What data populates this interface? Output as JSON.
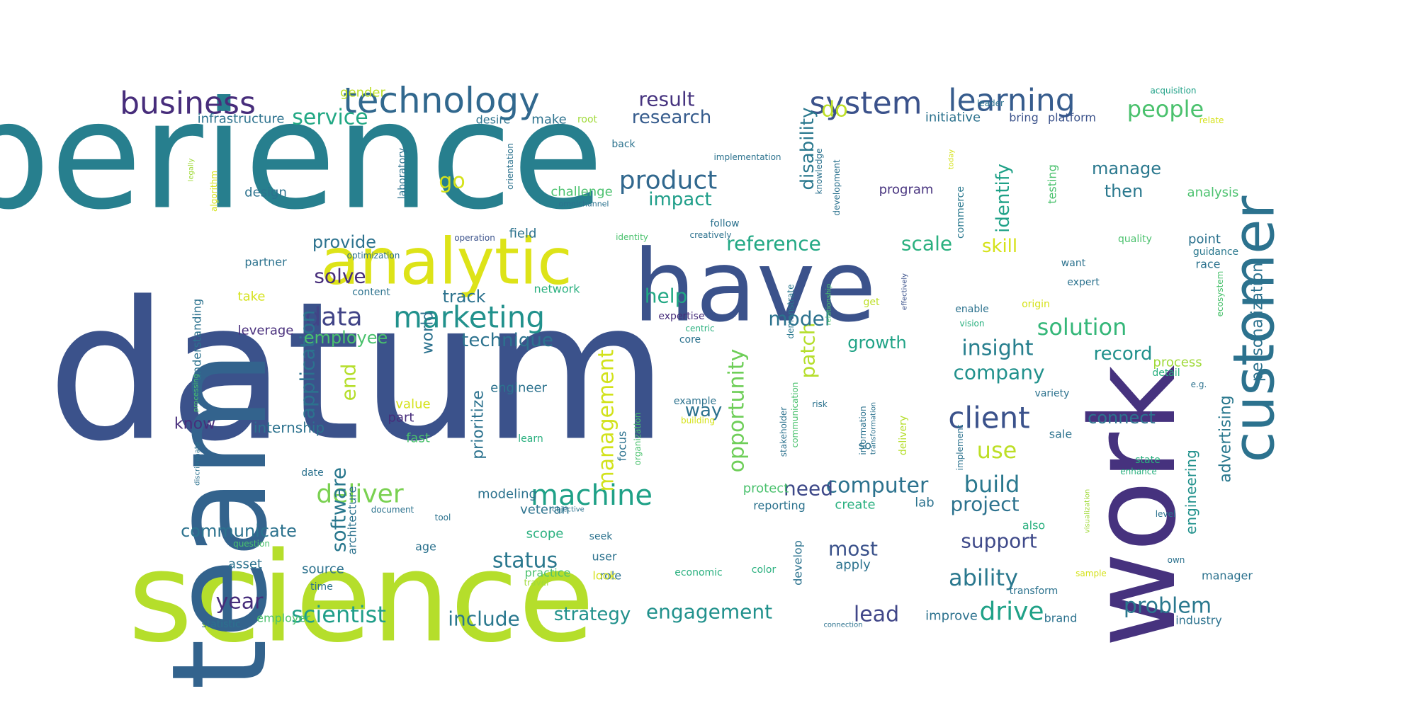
{
  "palette": {
    "dark_purple": "#46327e",
    "indigo": "#3b528b",
    "blue": "#365c8d",
    "teal": "#277f8e",
    "green": "#1fa187",
    "mint": "#4ac16d",
    "lime": "#a0da39",
    "yellow": "#dde318"
  },
  "words": [
    {
      "text": "experience",
      "color": "#277f8e"
    },
    {
      "text": "datum",
      "color": "#3b528b"
    },
    {
      "text": "science",
      "color": "#b5de2b"
    },
    {
      "text": "team",
      "color": "#33638d"
    },
    {
      "text": "work",
      "color": "#46327e"
    },
    {
      "text": "have",
      "color": "#3b528b"
    },
    {
      "text": "analytic",
      "color": "#dde318"
    },
    {
      "text": "customer",
      "color": "#2c728e"
    },
    {
      "text": "technology",
      "color": "#31688e"
    },
    {
      "text": "business",
      "color": "#472d7b"
    },
    {
      "text": "learning",
      "color": "#365c8d"
    },
    {
      "text": "system",
      "color": "#3b528b"
    },
    {
      "text": "marketing",
      "color": "#21918c"
    },
    {
      "text": "machine",
      "color": "#1fa187"
    },
    {
      "text": "client",
      "color": "#3b528b"
    },
    {
      "text": "deliver",
      "color": "#7ad151"
    },
    {
      "text": "product",
      "color": "#31688e"
    },
    {
      "text": "data",
      "color": "#414487"
    },
    {
      "text": "people",
      "color": "#4ac16d"
    },
    {
      "text": "service",
      "color": "#22a884"
    },
    {
      "text": "solution",
      "color": "#35b779"
    },
    {
      "text": "scientist",
      "color": "#1f9e89"
    },
    {
      "text": "ability",
      "color": "#2a788e"
    },
    {
      "text": "build",
      "color": "#2a788e"
    },
    {
      "text": "drive",
      "color": "#1fa187"
    },
    {
      "text": "year",
      "color": "#472d7b"
    },
    {
      "text": "opportunity",
      "color": "#6ece58"
    },
    {
      "text": "management",
      "color": "#d2e21b"
    },
    {
      "text": "software",
      "color": "#2a788e"
    },
    {
      "text": "application",
      "color": "#2c728e"
    },
    {
      "text": "problem",
      "color": "#2a788e"
    },
    {
      "text": "insight",
      "color": "#277f8e"
    },
    {
      "text": "company",
      "color": "#21918c"
    },
    {
      "text": "patch",
      "color": "#b5de2b"
    },
    {
      "text": "use",
      "color": "#bddf26"
    },
    {
      "text": "computer",
      "color": "#2c728e"
    },
    {
      "text": "engagement",
      "color": "#21918c"
    },
    {
      "text": "status",
      "color": "#2a788e"
    },
    {
      "text": "project",
      "color": "#2c728e"
    },
    {
      "text": "support",
      "color": "#3e4989"
    },
    {
      "text": "most",
      "color": "#3b528b"
    },
    {
      "text": "include",
      "color": "#2a788e"
    },
    {
      "text": "strategy",
      "color": "#21918c"
    },
    {
      "text": "lead",
      "color": "#404688"
    },
    {
      "text": "need",
      "color": "#3e4989"
    },
    {
      "text": "reference",
      "color": "#22a884"
    },
    {
      "text": "scale",
      "color": "#2ab07f"
    },
    {
      "text": "identify",
      "color": "#1fa187"
    },
    {
      "text": "result",
      "color": "#46337f"
    },
    {
      "text": "research",
      "color": "#365c8d"
    },
    {
      "text": "disability",
      "color": "#2a788e"
    },
    {
      "text": "do",
      "color": "#bddf26"
    },
    {
      "text": "impact",
      "color": "#1f9e89"
    },
    {
      "text": "go",
      "color": "#d5e21a"
    },
    {
      "text": "help",
      "color": "#22a884"
    },
    {
      "text": "model",
      "color": "#2c728e"
    },
    {
      "text": "growth",
      "color": "#20a386"
    },
    {
      "text": "skill",
      "color": "#d5e21a"
    },
    {
      "text": "manage",
      "color": "#2a788e"
    },
    {
      "text": "then",
      "color": "#2a788e"
    },
    {
      "text": "record",
      "color": "#21918c"
    },
    {
      "text": "connect",
      "color": "#2c728e"
    },
    {
      "text": "provide",
      "color": "#2c728e"
    },
    {
      "text": "solve",
      "color": "#472d7b"
    },
    {
      "text": "track",
      "color": "#2c728e"
    },
    {
      "text": "technique",
      "color": "#2c728e"
    },
    {
      "text": "world",
      "color": "#2c728e"
    },
    {
      "text": "employee",
      "color": "#4ac16d"
    },
    {
      "text": "end",
      "color": "#b5de2b"
    },
    {
      "text": "prioritize",
      "color": "#2c728e"
    },
    {
      "text": "way",
      "color": "#2c728e"
    },
    {
      "text": "know",
      "color": "#472d7b"
    },
    {
      "text": "internship",
      "color": "#2c728e"
    },
    {
      "text": "communicate",
      "color": "#2c728e"
    },
    {
      "text": "personalization",
      "color": "#2c728e"
    },
    {
      "text": "advertising",
      "color": "#2a788e"
    },
    {
      "text": "engineering",
      "color": "#21918c"
    },
    {
      "text": "infrastructure",
      "color": "#2c728e"
    },
    {
      "text": "gender",
      "color": "#bddf26"
    },
    {
      "text": "desire",
      "color": "#2c728e"
    },
    {
      "text": "make",
      "color": "#2c728e"
    },
    {
      "text": "root",
      "color": "#a0da39"
    },
    {
      "text": "initiative",
      "color": "#2c728e"
    },
    {
      "text": "bring",
      "color": "#3b528b"
    },
    {
      "text": "platform",
      "color": "#3b528b"
    },
    {
      "text": "leader",
      "color": "#2c728e"
    },
    {
      "text": "acquisition",
      "color": "#1fa187"
    },
    {
      "text": "relate",
      "color": "#d5e21a"
    },
    {
      "text": "laboratory",
      "color": "#2c728e"
    },
    {
      "text": "challenge",
      "color": "#4ac16d"
    },
    {
      "text": "design",
      "color": "#2c728e"
    },
    {
      "text": "program",
      "color": "#46327e"
    },
    {
      "text": "analysis",
      "color": "#4ac16d"
    },
    {
      "text": "algorithm",
      "color": "#d5e21a"
    },
    {
      "text": "implementation",
      "color": "#2c728e"
    },
    {
      "text": "orientation",
      "color": "#2c728e"
    },
    {
      "text": "knowledge",
      "color": "#2c728e"
    },
    {
      "text": "development",
      "color": "#2c728e"
    },
    {
      "text": "commerce",
      "color": "#2a788e"
    },
    {
      "text": "testing",
      "color": "#4ac16d"
    },
    {
      "text": "today",
      "color": "#d5e21a"
    },
    {
      "text": "back",
      "color": "#2c728e"
    },
    {
      "text": "omnichannel",
      "color": "#2c728e"
    },
    {
      "text": "legally",
      "color": "#a0da39"
    },
    {
      "text": "field",
      "color": "#2c728e"
    },
    {
      "text": "operation",
      "color": "#3b528b"
    },
    {
      "text": "identity",
      "color": "#4ac16d"
    },
    {
      "text": "creatively",
      "color": "#2c728e"
    },
    {
      "text": "follow",
      "color": "#2c728e"
    },
    {
      "text": "quality",
      "color": "#4ac16d"
    },
    {
      "text": "point",
      "color": "#2c728e"
    },
    {
      "text": "guidance",
      "color": "#2a788e"
    },
    {
      "text": "race",
      "color": "#2c728e"
    },
    {
      "text": "ecosystem",
      "color": "#4ac16d"
    },
    {
      "text": "partner",
      "color": "#2c728e"
    },
    {
      "text": "optimization",
      "color": "#2c728e"
    },
    {
      "text": "take",
      "color": "#d5e21a"
    },
    {
      "text": "content",
      "color": "#2c728e"
    },
    {
      "text": "network",
      "color": "#2ab07f"
    },
    {
      "text": "understanding",
      "color": "#2c728e"
    },
    {
      "text": "leverage",
      "color": "#472d7b"
    },
    {
      "text": "expertise",
      "color": "#472d7b"
    },
    {
      "text": "centric",
      "color": "#2ab07f"
    },
    {
      "text": "core",
      "color": "#2c728e"
    },
    {
      "text": "demonstrate",
      "color": "#2a788e"
    },
    {
      "text": "relationship",
      "color": "#4ac16d"
    },
    {
      "text": "effectively",
      "color": "#3b528b"
    },
    {
      "text": "get",
      "color": "#bddf26"
    },
    {
      "text": "want",
      "color": "#2c728e"
    },
    {
      "text": "expert",
      "color": "#2c728e"
    },
    {
      "text": "origin",
      "color": "#d5e21a"
    },
    {
      "text": "enable",
      "color": "#2c728e"
    },
    {
      "text": "vision",
      "color": "#2ab07f"
    },
    {
      "text": "process",
      "color": "#a0da39"
    },
    {
      "text": "detail",
      "color": "#2ab07f"
    },
    {
      "text": "e.g.",
      "color": "#2c728e"
    },
    {
      "text": "variety",
      "color": "#2c728e"
    },
    {
      "text": "engineer",
      "color": "#2c728e"
    },
    {
      "text": "processing",
      "color": "#4ac16d"
    },
    {
      "text": "example",
      "color": "#2c728e"
    },
    {
      "text": "building",
      "color": "#d5e21a"
    },
    {
      "text": "communication",
      "color": "#4ac16d"
    },
    {
      "text": "stakeholder",
      "color": "#2c728e"
    },
    {
      "text": "information",
      "color": "#2c728e"
    },
    {
      "text": "transformation",
      "color": "#2c728e"
    },
    {
      "text": "risk",
      "color": "#2c728e"
    },
    {
      "text": "so",
      "color": "#2c728e"
    },
    {
      "text": "value",
      "color": "#d5e21a"
    },
    {
      "text": "part",
      "color": "#472d7b"
    },
    {
      "text": "fast",
      "color": "#4ac16d"
    },
    {
      "text": "learn",
      "color": "#2ab07f"
    },
    {
      "text": "focus",
      "color": "#2c728e"
    },
    {
      "text": "organization",
      "color": "#4ac16d"
    },
    {
      "text": "delivery",
      "color": "#b5de2b"
    },
    {
      "text": "implement",
      "color": "#2c728e"
    },
    {
      "text": "sale",
      "color": "#2c728e"
    },
    {
      "text": "state",
      "color": "#2ab07f"
    },
    {
      "text": "enhance",
      "color": "#2ab07f"
    },
    {
      "text": "discriminate",
      "color": "#2c728e"
    },
    {
      "text": "date",
      "color": "#2c728e"
    },
    {
      "text": "architecture",
      "color": "#2c728e"
    },
    {
      "text": "modeling",
      "color": "#2c728e"
    },
    {
      "text": "veteran",
      "color": "#2c728e"
    },
    {
      "text": "protect",
      "color": "#4ac16d"
    },
    {
      "text": "create",
      "color": "#2ab07f"
    },
    {
      "text": "reporting",
      "color": "#2c728e"
    },
    {
      "text": "lab",
      "color": "#2c728e"
    },
    {
      "text": "document",
      "color": "#2c728e"
    },
    {
      "text": "tool",
      "color": "#2c728e"
    },
    {
      "text": "objective",
      "color": "#2c728e"
    },
    {
      "text": "question",
      "color": "#4ac16d"
    },
    {
      "text": "visualization",
      "color": "#a0da39"
    },
    {
      "text": "level",
      "color": "#2c728e"
    },
    {
      "text": "own",
      "color": "#2c728e"
    },
    {
      "text": "scope",
      "color": "#2ab07f"
    },
    {
      "text": "seek",
      "color": "#2c728e"
    },
    {
      "text": "also",
      "color": "#2ab07f"
    },
    {
      "text": "age",
      "color": "#2c728e"
    },
    {
      "text": "user",
      "color": "#2c728e"
    },
    {
      "text": "role",
      "color": "#2c728e"
    },
    {
      "text": "look",
      "color": "#d5e21a"
    },
    {
      "text": "develop",
      "color": "#2c728e"
    },
    {
      "text": "apply",
      "color": "#2c728e"
    },
    {
      "text": "asset",
      "color": "#2c728e"
    },
    {
      "text": "source",
      "color": "#2c728e"
    },
    {
      "text": "time",
      "color": "#2c728e"
    },
    {
      "text": "practice",
      "color": "#4ac16d"
    },
    {
      "text": "travel",
      "color": "#a0da39"
    },
    {
      "text": "economic",
      "color": "#2ab07f"
    },
    {
      "text": "color",
      "color": "#2ab07f"
    },
    {
      "text": "sample",
      "color": "#d5e21a"
    },
    {
      "text": "manager",
      "color": "#2c728e"
    },
    {
      "text": "transform",
      "color": "#2c728e"
    },
    {
      "text": "brand",
      "color": "#2c728e"
    },
    {
      "text": "industry",
      "color": "#2c728e"
    },
    {
      "text": "statistic",
      "color": "#2c728e"
    },
    {
      "text": "employer",
      "color": "#4ac16d"
    },
    {
      "text": "improve",
      "color": "#2c728e"
    },
    {
      "text": "connection",
      "color": "#2c728e"
    }
  ]
}
